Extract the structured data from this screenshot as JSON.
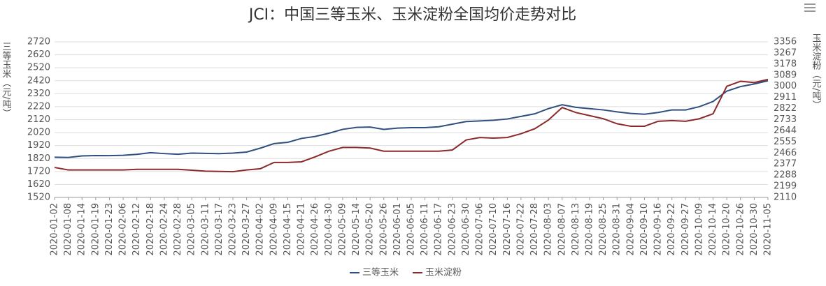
{
  "chart_data": {
    "type": "line",
    "title": "JCI：中国三等玉米、玉米淀粉全国均价走势对比",
    "y_label": "三等玉米（元/吨）",
    "y2_label": "玉米淀粉（元/吨）",
    "categories": [
      "2020-01-02",
      "2020-01-08",
      "2020-01-14",
      "2020-01-19",
      "2020-01-23",
      "2020-02-06",
      "2020-02-12",
      "2020-02-18",
      "2020-02-24",
      "2020-02-28",
      "2020-03-05",
      "2020-03-11",
      "2020-03-17",
      "2020-03-23",
      "2020-03-27",
      "2020-04-02",
      "2020-04-09",
      "2020-04-15",
      "2020-04-21",
      "2020-04-26",
      "2020-04-30",
      "2020-05-09",
      "2020-05-14",
      "2020-05-20",
      "2020-05-26",
      "2020-06-01",
      "2020-06-05",
      "2020-06-11",
      "2020-06-17",
      "2020-06-23",
      "2020-06-30",
      "2020-07-06",
      "2020-07-10",
      "2020-07-16",
      "2020-07-22",
      "2020-07-28",
      "2020-08-03",
      "2020-08-07",
      "2020-08-13",
      "2020-08-19",
      "2020-08-25",
      "2020-08-31",
      "2020-09-04",
      "2020-09-10",
      "2020-09-16",
      "2020-09-22",
      "2020-09-27",
      "2020-10-09",
      "2020-10-14",
      "2020-10-20",
      "2020-10-26",
      "2020-10-30",
      "2020-11-05"
    ],
    "series": [
      {
        "name": "三等玉米",
        "color": "#2f4f7f",
        "axis": "y",
        "values": [
          1830,
          1828,
          1840,
          1843,
          1842,
          1845,
          1852,
          1865,
          1858,
          1853,
          1862,
          1860,
          1858,
          1862,
          1870,
          1900,
          1935,
          1945,
          1975,
          1990,
          2015,
          2045,
          2060,
          2063,
          2045,
          2055,
          2058,
          2058,
          2065,
          2085,
          2105,
          2110,
          2115,
          2125,
          2145,
          2165,
          2205,
          2235,
          2215,
          2205,
          2195,
          2180,
          2168,
          2162,
          2175,
          2195,
          2195,
          2220,
          2260,
          2340,
          2375,
          2395,
          2420
        ]
      },
      {
        "name": "玉米淀粉",
        "color": "#8b2a2a",
        "axis": "y2",
        "values": [
          2350,
          2330,
          2330,
          2330,
          2330,
          2330,
          2335,
          2335,
          2335,
          2335,
          2328,
          2320,
          2318,
          2316,
          2330,
          2340,
          2390,
          2390,
          2395,
          2435,
          2480,
          2510,
          2510,
          2505,
          2480,
          2480,
          2480,
          2480,
          2480,
          2490,
          2570,
          2590,
          2585,
          2590,
          2620,
          2660,
          2730,
          2830,
          2790,
          2765,
          2740,
          2700,
          2680,
          2680,
          2720,
          2725,
          2720,
          2740,
          2780,
          3000,
          3040,
          3030,
          3055
        ]
      }
    ],
    "ylim": [
      1520,
      2720
    ],
    "yticks": [
      1520,
      1620,
      1720,
      1820,
      1920,
      2020,
      2120,
      2220,
      2320,
      2420,
      2520,
      2620,
      2720
    ],
    "y2lim": [
      2110,
      3356
    ],
    "y2ticks": [
      2110,
      2199,
      2288,
      2377,
      2466,
      2555,
      2644,
      2733,
      2822,
      2911,
      3000,
      3089,
      3178,
      3267,
      3356
    ],
    "grid": true,
    "legend": "bottom"
  }
}
